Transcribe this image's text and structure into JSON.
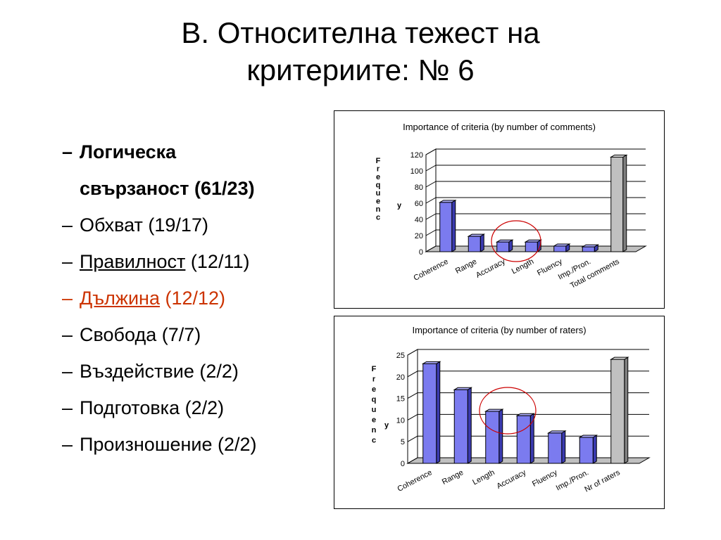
{
  "title": {
    "line1": "В. Относителна тежест на",
    "line2": "критериите: № 6"
  },
  "bullets": [
    {
      "dash": "–",
      "text": "Логическа",
      "style": "bold"
    },
    {
      "dash": "",
      "text": "свързаност (61/23)",
      "style": "bold"
    },
    {
      "dash": "–",
      "text": "Обхват (19/17)",
      "style": "normal"
    },
    {
      "dash": "–",
      "main": "Правилност",
      "rest": " (12/11)",
      "style": "underline"
    },
    {
      "dash": "–",
      "main": "Дължина",
      "rest": " (12/12)",
      "style": "red"
    },
    {
      "dash": "–",
      "text": "Свобода  (7/7)",
      "style": "normal"
    },
    {
      "dash": "–",
      "text": "Въздействие (2/2)",
      "style": "normal"
    },
    {
      "dash": "–",
      "text": "Подготовка (2/2)",
      "style": "normal"
    },
    {
      "dash": "–",
      "text": "Произношение (2/2)",
      "style": "normal"
    }
  ],
  "colors": {
    "bar": "#7b7bef",
    "bar_side": "#3b3bb0",
    "bar_top": "#b0b0ff",
    "total_bar": "#c0c0c0",
    "total_side": "#808080",
    "circle": "#cc0000"
  },
  "chart_data": [
    {
      "type": "bar",
      "title": "Importance of criteria (by number of comments)",
      "ylabel": "Frequency",
      "categories": [
        "Coherence",
        "Range",
        "Accuracy",
        "Length",
        "Fluency",
        "Imp./Pron.",
        "Total comments"
      ],
      "values": [
        61,
        19,
        12,
        12,
        7,
        6,
        117
      ],
      "ylim": [
        0,
        120
      ],
      "yticks": [
        0,
        20,
        40,
        60,
        80,
        100,
        120
      ],
      "grid": true,
      "highlighted": [
        "Accuracy",
        "Length"
      ]
    },
    {
      "type": "bar",
      "title": "Importance of criteria (by number of raters)",
      "ylabel": "Frequency",
      "categories": [
        "Coherence",
        "Range",
        "Length",
        "Accuracy",
        "Fluency",
        "Imp./Pron.",
        "Nr of raters"
      ],
      "values": [
        23,
        17,
        12,
        11,
        7,
        6,
        24
      ],
      "ylim": [
        0,
        25
      ],
      "yticks": [
        0,
        5,
        10,
        15,
        20,
        25
      ],
      "grid": true,
      "highlighted": [
        "Length",
        "Accuracy"
      ]
    }
  ]
}
